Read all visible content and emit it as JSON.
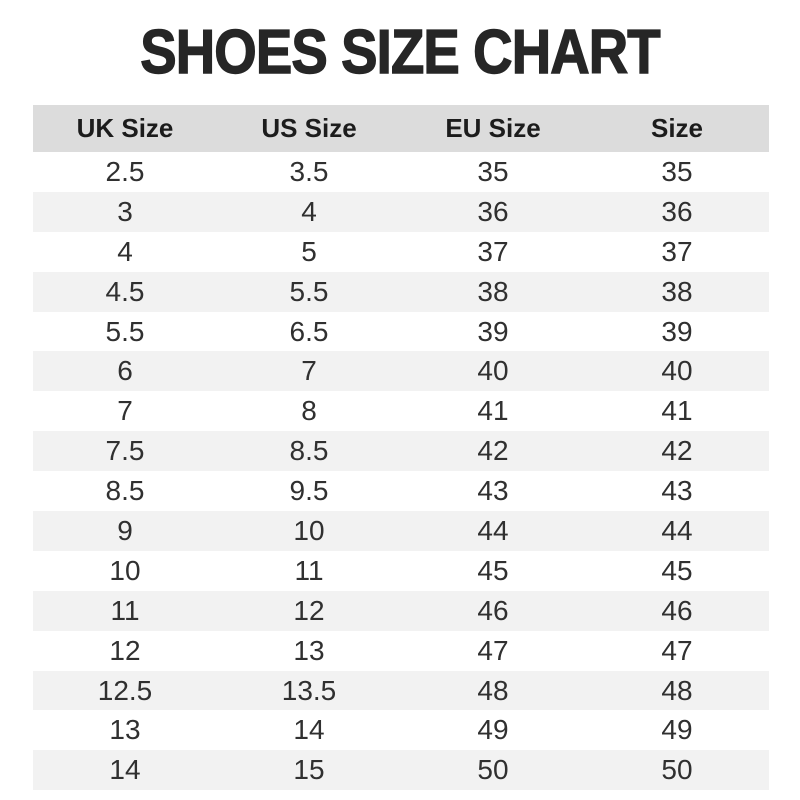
{
  "chart_data": {
    "type": "table",
    "title": "SHOES SIZE CHART",
    "columns": [
      "UK Size",
      "US Size",
      "EU Size",
      "Size"
    ],
    "rows": [
      [
        "2.5",
        "3.5",
        "35",
        "35"
      ],
      [
        "3",
        "4",
        "36",
        "36"
      ],
      [
        "4",
        "5",
        "37",
        "37"
      ],
      [
        "4.5",
        "5.5",
        "38",
        "38"
      ],
      [
        "5.5",
        "6.5",
        "39",
        "39"
      ],
      [
        "6",
        "7",
        "40",
        "40"
      ],
      [
        "7",
        "8",
        "41",
        "41"
      ],
      [
        "7.5",
        "8.5",
        "42",
        "42"
      ],
      [
        "8.5",
        "9.5",
        "43",
        "43"
      ],
      [
        "9",
        "10",
        "44",
        "44"
      ],
      [
        "10",
        "11",
        "45",
        "45"
      ],
      [
        "11",
        "12",
        "46",
        "46"
      ],
      [
        "12",
        "13",
        "47",
        "47"
      ],
      [
        "12.5",
        "13.5",
        "48",
        "48"
      ],
      [
        "13",
        "14",
        "49",
        "49"
      ],
      [
        "14",
        "15",
        "50",
        "50"
      ]
    ],
    "layout": {
      "striped": true,
      "first_data_row_background": "white",
      "columns_equal_width": true,
      "text_align": "center"
    }
  },
  "colors": {
    "title_color": "#262626",
    "header_bg": "#dcdcdc",
    "header_text_color": "#1c1c1c",
    "row_bg": "#ffffff",
    "row_alt_bg": "#f2f2f2",
    "text_color": "#303030",
    "page_bg": "#ffffff"
  }
}
